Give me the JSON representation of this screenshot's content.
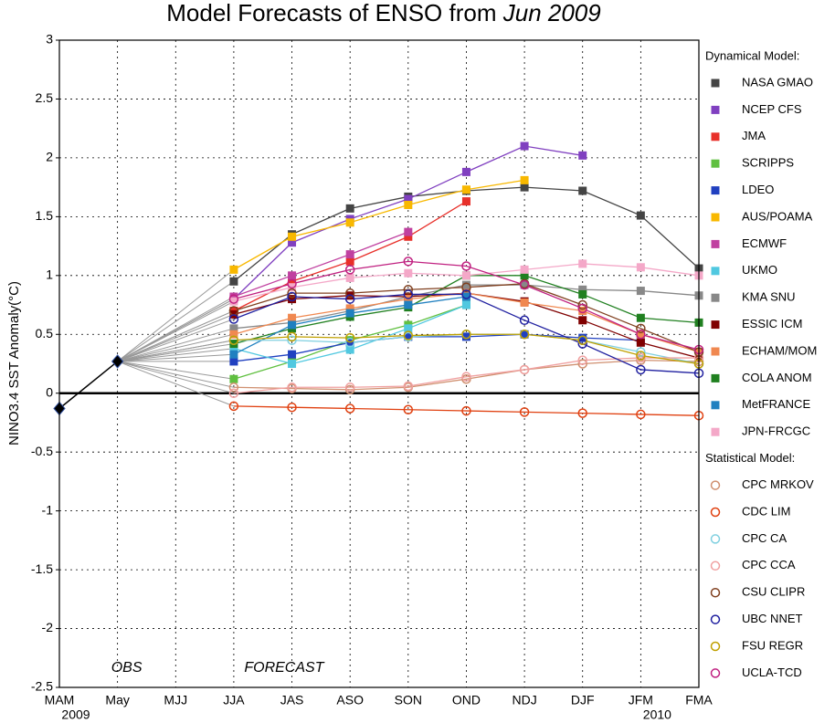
{
  "chart_data": {
    "type": "line",
    "title": "Model Forecasts of ENSO from",
    "title_date": "Jun 2009",
    "ylabel": "NINO3.4 SST Anomaly(°C)",
    "annotations": [
      "OBS",
      "FORECAST"
    ],
    "years": [
      {
        "label": "2009",
        "category": 0
      },
      {
        "label": "2010",
        "category": 10
      }
    ],
    "categories": [
      "MAM",
      "May",
      "MJJ",
      "JJA",
      "JAS",
      "ASO",
      "SON",
      "OND",
      "NDJ",
      "DJF",
      "JFM",
      "FMA"
    ],
    "ylim": [
      -2.5,
      3
    ],
    "yticks": [
      -2.5,
      -2,
      -1.5,
      -1,
      -0.5,
      0,
      0.5,
      1,
      1.5,
      2,
      2.5,
      3
    ],
    "grid": true,
    "legend": "right",
    "groups": [
      "Dynamical Model:",
      "Statistical Model:"
    ],
    "observations": {
      "color": "#000000",
      "values": [
        -0.13,
        0.27,
        null,
        null,
        null,
        null,
        null,
        null,
        null,
        null,
        null,
        null
      ]
    },
    "series": [
      {
        "name": "NASA GMAO",
        "group": 0,
        "marker": "square",
        "color": "#444444",
        "values": [
          null,
          null,
          null,
          0.95,
          1.35,
          1.57,
          1.67,
          1.72,
          1.75,
          1.72,
          1.51,
          1.06
        ]
      },
      {
        "name": "NCEP CFS",
        "group": 0,
        "marker": "square",
        "color": "#8040c0",
        "values": [
          null,
          null,
          null,
          0.8,
          1.28,
          1.48,
          1.65,
          1.88,
          2.1,
          2.02,
          null,
          null
        ]
      },
      {
        "name": "JMA",
        "group": 0,
        "marker": "square",
        "color": "#e8302a",
        "values": [
          null,
          null,
          null,
          0.7,
          0.95,
          1.12,
          1.33,
          1.63,
          null,
          null,
          null,
          null
        ]
      },
      {
        "name": "SCRIPPS",
        "group": 0,
        "marker": "square",
        "color": "#60c040",
        "values": [
          null,
          null,
          null,
          0.12,
          0.27,
          0.45,
          0.58,
          0.75,
          null,
          null,
          null,
          null
        ]
      },
      {
        "name": "LDEO",
        "group": 0,
        "marker": "square",
        "color": "#2040c0",
        "values": [
          null,
          null,
          null,
          0.27,
          0.33,
          0.43,
          0.48,
          0.48,
          0.5,
          0.47,
          0.45,
          null
        ]
      },
      {
        "name": "AUS/POAMA",
        "group": 0,
        "marker": "square",
        "color": "#f8b800",
        "values": [
          null,
          null,
          null,
          1.05,
          1.33,
          1.45,
          1.6,
          1.73,
          1.81,
          null,
          null,
          null
        ]
      },
      {
        "name": "ECMWF",
        "group": 0,
        "marker": "square",
        "color": "#c040a0",
        "values": [
          null,
          null,
          null,
          0.82,
          1.0,
          1.18,
          1.37,
          null,
          null,
          null,
          null,
          null
        ]
      },
      {
        "name": "UKMO",
        "group": 0,
        "marker": "square",
        "color": "#50c8e0",
        "values": [
          null,
          null,
          null,
          0.38,
          0.25,
          0.37,
          0.55,
          0.75,
          null,
          null,
          null,
          null
        ]
      },
      {
        "name": "KMA SNU",
        "group": 0,
        "marker": "square",
        "color": "#888888",
        "values": [
          null,
          null,
          null,
          0.55,
          0.6,
          0.7,
          0.82,
          0.92,
          0.92,
          0.88,
          0.87,
          0.83
        ]
      },
      {
        "name": "ESSIC ICM",
        "group": 0,
        "marker": "square",
        "color": "#800000",
        "values": [
          null,
          null,
          null,
          0.67,
          0.8,
          0.83,
          0.82,
          0.85,
          0.78,
          0.62,
          0.43,
          0.3
        ]
      },
      {
        "name": "ECHAM/MOM",
        "group": 0,
        "marker": "square",
        "color": "#f08850",
        "values": [
          null,
          null,
          null,
          0.5,
          0.64,
          0.72,
          0.8,
          0.85,
          0.77,
          0.7,
          0.5,
          0.35
        ]
      },
      {
        "name": "COLA ANOM",
        "group": 0,
        "marker": "square",
        "color": "#208020",
        "values": [
          null,
          null,
          null,
          0.42,
          0.55,
          0.65,
          0.73,
          1.0,
          1.0,
          0.84,
          0.64,
          0.6
        ]
      },
      {
        "name": "MetFRANCE",
        "group": 0,
        "marker": "square",
        "color": "#2080c0",
        "values": [
          null,
          null,
          null,
          0.33,
          0.58,
          0.68,
          0.75,
          0.82,
          null,
          null,
          null,
          null
        ]
      },
      {
        "name": "JPN-FRCGC",
        "group": 0,
        "marker": "square",
        "color": "#f4a8c8",
        "values": [
          null,
          null,
          null,
          0.78,
          0.9,
          0.98,
          1.02,
          1.0,
          1.05,
          1.1,
          1.07,
          1.0
        ]
      },
      {
        "name": "CPC MRKOV",
        "group": 1,
        "marker": "circle",
        "color": "#d09070",
        "values": [
          null,
          null,
          null,
          0.05,
          0.04,
          0.03,
          0.05,
          0.12,
          0.2,
          0.25,
          0.28,
          0.27
        ]
      },
      {
        "name": "CDC LIM",
        "group": 1,
        "marker": "circle",
        "color": "#e04010",
        "values": [
          null,
          null,
          null,
          -0.11,
          -0.12,
          -0.13,
          -0.14,
          -0.15,
          -0.16,
          -0.17,
          -0.18,
          -0.19
        ]
      },
      {
        "name": "CPC CA",
        "group": 1,
        "marker": "circle",
        "color": "#80d0e0",
        "values": [
          null,
          null,
          null,
          0.45,
          0.45,
          0.43,
          0.48,
          0.5,
          0.5,
          0.45,
          0.35,
          0.25
        ]
      },
      {
        "name": "CPC CCA",
        "group": 1,
        "marker": "circle",
        "color": "#f0a0a0",
        "values": [
          null,
          null,
          null,
          0.0,
          0.05,
          0.05,
          0.06,
          0.14,
          0.2,
          0.28,
          0.3,
          0.3
        ]
      },
      {
        "name": "CSU CLIPR",
        "group": 1,
        "marker": "circle",
        "color": "#804020",
        "values": [
          null,
          null,
          null,
          0.7,
          0.85,
          0.85,
          0.88,
          0.9,
          0.93,
          0.75,
          0.55,
          0.35
        ]
      },
      {
        "name": "UBC NNET",
        "group": 1,
        "marker": "circle",
        "color": "#2020a0",
        "values": [
          null,
          null,
          null,
          0.63,
          0.82,
          0.8,
          0.84,
          0.84,
          0.62,
          0.42,
          0.2,
          0.17
        ]
      },
      {
        "name": "FSU REGR",
        "group": 1,
        "marker": "circle",
        "color": "#c0a000",
        "values": [
          null,
          null,
          null,
          0.45,
          0.48,
          0.47,
          0.49,
          0.5,
          0.5,
          0.45,
          0.32,
          0.25
        ]
      },
      {
        "name": "UCLA-TCD",
        "group": 1,
        "marker": "circle",
        "color": "#c02080",
        "values": [
          null,
          null,
          null,
          0.8,
          0.93,
          1.05,
          1.12,
          1.08,
          0.92,
          0.72,
          0.5,
          0.37
        ]
      }
    ]
  }
}
